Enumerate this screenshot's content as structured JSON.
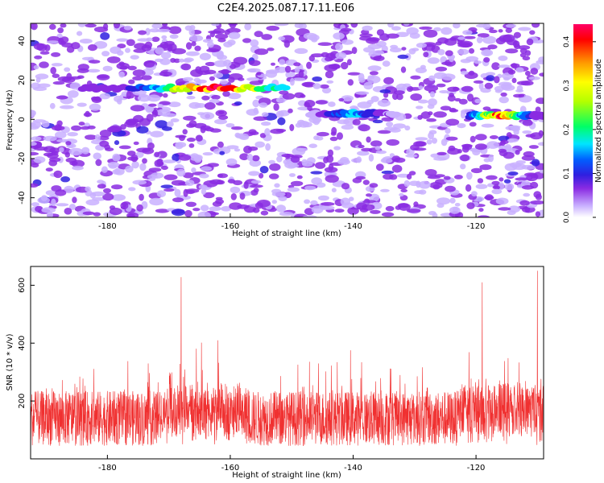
{
  "title": "C2E4.2025.087.17.11.E06",
  "chart_data": [
    {
      "type": "heatmap",
      "xlabel": "Height of straight line (km)",
      "ylabel": "Frequency (Hz)",
      "xlim": [
        -192.5,
        -109
      ],
      "ylim": [
        -50,
        49
      ],
      "xticks": [
        "-180",
        "-160",
        "-140",
        "-120"
      ],
      "yticks": [
        "40",
        "20",
        "0",
        "-20",
        "-40"
      ],
      "colorbar": {
        "label": "Normalized spectral amplitude",
        "range": [
          0,
          0.44
        ],
        "ticks": [
          "0.0",
          "0.1",
          "0.2",
          "0.3",
          "0.4"
        ],
        "colormap": [
          "#ffffff",
          "#c9b0ff",
          "#8a2be2",
          "#2f1fe0",
          "#0060ff",
          "#00e5ff",
          "#00ff66",
          "#b4ff00",
          "#ffff00",
          "#ff9900",
          "#ff0000",
          "#ff0066"
        ]
      },
      "features": [
        {
          "x": [
            -184,
            -151
          ],
          "y": 16,
          "peak_x": -162,
          "peak_value": 0.42
        },
        {
          "x": [
            -147,
            -133
          ],
          "y": 3,
          "peak_x": -140,
          "peak_value": 0.2
        },
        {
          "x": [
            -121,
            -109
          ],
          "y": 2,
          "peak_x": -116,
          "peak_value": 0.4
        }
      ]
    },
    {
      "type": "line",
      "xlabel": "Height of straight line (km)",
      "ylabel": "SNR (10 * v/v)",
      "xlim": [
        -192.5,
        -109
      ],
      "ylim": [
        0,
        665
      ],
      "xticks": [
        "-180",
        "-160",
        "-140",
        "-120"
      ],
      "yticks": [
        "200",
        "400",
        "600"
      ],
      "series": [
        {
          "color": "#f03030",
          "peaks": [
            {
              "x": -168,
              "y": 628
            },
            {
              "x": -119,
              "y": 610
            },
            {
              "x": -110,
              "y": 650
            }
          ]
        }
      ]
    }
  ]
}
